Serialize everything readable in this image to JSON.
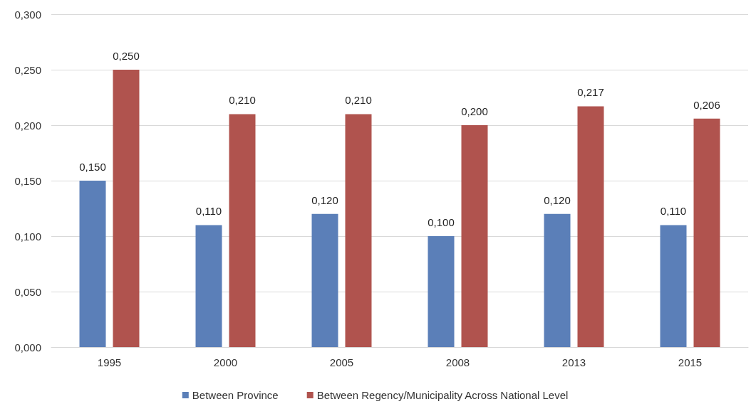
{
  "chart_data": {
    "type": "bar",
    "categories": [
      "1995",
      "2000",
      "2005",
      "2008",
      "2013",
      "2015"
    ],
    "series": [
      {
        "name": "Between Province",
        "color": "#5b7fb8",
        "values": [
          0.15,
          0.11,
          0.12,
          0.1,
          0.12,
          0.11
        ],
        "value_labels": [
          "0,150",
          "0,110",
          "0,120",
          "0,100",
          "0,120",
          "0,110"
        ]
      },
      {
        "name": "Between Regency/Municipality Across National Level",
        "color": "#b0534e",
        "values": [
          0.25,
          0.21,
          0.21,
          0.2,
          0.217,
          0.206
        ],
        "value_labels": [
          "0,250",
          "0,210",
          "0,210",
          "0,200",
          "0,217",
          "0,206"
        ]
      }
    ],
    "ylim": [
      0,
      0.3
    ],
    "yticks": [
      {
        "value": 0,
        "label": "0,000"
      },
      {
        "value": 0.05,
        "label": "0,050"
      },
      {
        "value": 0.1,
        "label": "0,100"
      },
      {
        "value": 0.15,
        "label": "0,150"
      },
      {
        "value": 0.2,
        "label": "0,200"
      },
      {
        "value": 0.25,
        "label": "0,250"
      },
      {
        "value": 0.3,
        "label": "0,300"
      }
    ],
    "grid": "y",
    "legend": "bottom"
  }
}
